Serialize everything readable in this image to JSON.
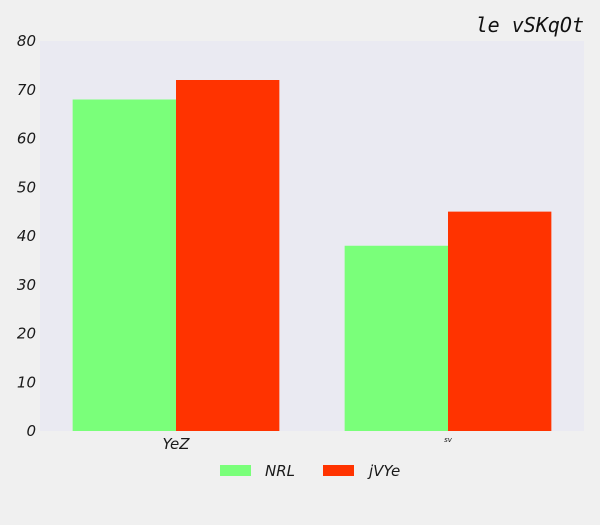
{
  "chart_data": {
    "type": "bar",
    "title": "le vSKqOt",
    "xlabel": "",
    "ylabel": "",
    "categories": [
      "YeZ",
      "sv"
    ],
    "series": [
      {
        "name": "NRL",
        "values": [
          68,
          38
        ]
      },
      {
        "name": "jVYe",
        "values": [
          72,
          45
        ]
      }
    ],
    "ylim": [
      0,
      80
    ],
    "yticks": [
      "0",
      "10",
      "20",
      "30",
      "40",
      "50",
      "60",
      "70",
      "80"
    ],
    "grid": false,
    "legend_position": "bottom-center",
    "colors": {
      "plot_background": "#eaeaf2",
      "page_background": "#f0f0f0",
      "series": [
        "#7aff7a",
        "#ff3300"
      ]
    }
  }
}
